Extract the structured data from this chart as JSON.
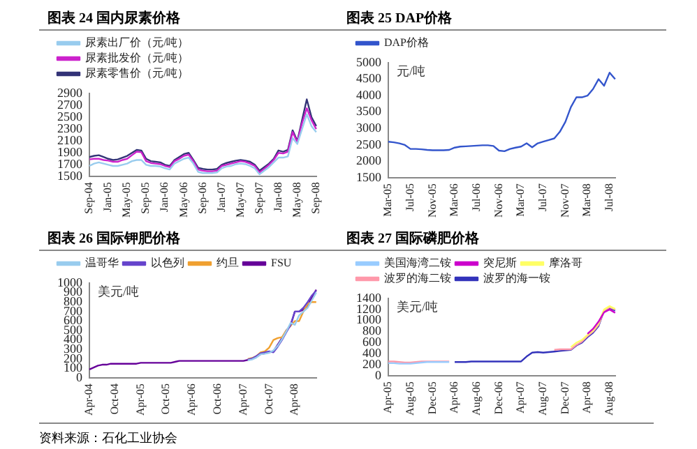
{
  "chart_data": [
    {
      "type": "line",
      "title": "图表 24  国内尿素价格",
      "categories": [
        "Sep-04",
        null,
        null,
        null,
        "Jan-05",
        null,
        null,
        null,
        "May-05",
        null,
        null,
        null,
        "Sep-05",
        null,
        null,
        null,
        "Jan-06",
        null,
        null,
        null,
        "May-06",
        null,
        null,
        null,
        "Sep-06",
        null,
        null,
        null,
        "Jan-07",
        null,
        null,
        null,
        "May-07",
        null,
        null,
        null,
        "Sep-07",
        null,
        null,
        null,
        "Jan-08",
        null,
        null,
        null,
        "May-08",
        null,
        null,
        null,
        "Sep-08"
      ],
      "series": [
        {
          "name": "尿素出厂价（元/吨）",
          "color": "#99ccee",
          "values": [
            1680,
            1720,
            1740,
            1720,
            1700,
            1680,
            1680,
            1700,
            1720,
            1760,
            1780,
            1780,
            1700,
            1680,
            1680,
            1670,
            1640,
            1620,
            1720,
            1760,
            1800,
            1820,
            1720,
            1580,
            1560,
            1560,
            1560,
            1570,
            1640,
            1670,
            1680,
            1710,
            1720,
            1710,
            1680,
            1640,
            1540,
            1600,
            1660,
            1740,
            1820,
            1820,
            1840,
            2150,
            2050,
            2300,
            2550,
            2350,
            2250
          ]
        },
        {
          "name": "尿素批发价（元/吨）",
          "color": "#cc22cc",
          "values": [
            1790,
            1800,
            1800,
            1780,
            1770,
            1750,
            1750,
            1780,
            1800,
            1860,
            1920,
            1910,
            1760,
            1730,
            1720,
            1710,
            1680,
            1660,
            1760,
            1800,
            1850,
            1870,
            1760,
            1620,
            1600,
            1590,
            1590,
            1600,
            1680,
            1700,
            1720,
            1740,
            1760,
            1750,
            1720,
            1680,
            1570,
            1630,
            1700,
            1780,
            1900,
            1890,
            1920,
            2250,
            2080,
            2400,
            2650,
            2450,
            2300
          ]
        },
        {
          "name": "尿素零售价（元/吨）",
          "color": "#333377",
          "values": [
            1830,
            1850,
            1860,
            1830,
            1800,
            1780,
            1790,
            1820,
            1850,
            1900,
            1950,
            1940,
            1800,
            1760,
            1750,
            1740,
            1700,
            1680,
            1780,
            1830,
            1880,
            1900,
            1780,
            1650,
            1630,
            1620,
            1620,
            1630,
            1700,
            1730,
            1750,
            1770,
            1780,
            1770,
            1750,
            1700,
            1600,
            1660,
            1720,
            1800,
            1940,
            1920,
            1950,
            2280,
            2100,
            2450,
            2800,
            2500,
            2350
          ]
        }
      ],
      "ylim": [
        1500,
        2900
      ],
      "yticks": [
        1500,
        1700,
        1900,
        2100,
        2300,
        2500,
        2700,
        2900
      ],
      "legend": "top left",
      "marker": "none",
      "grid": false
    },
    {
      "type": "line",
      "title": "图表 25  DAP价格",
      "ylabel": "元/吨",
      "categories": [
        "Mar-05",
        null,
        null,
        null,
        "Jul-05",
        null,
        null,
        null,
        "Nov-05",
        null,
        null,
        null,
        "Mar-06",
        null,
        null,
        null,
        "Jul-06",
        null,
        null,
        null,
        "Nov-06",
        null,
        null,
        null,
        "Mar-07",
        null,
        null,
        null,
        "Jul-07",
        null,
        null,
        null,
        "Nov-07",
        null,
        null,
        null,
        "Mar-08",
        null,
        null,
        null,
        "Jul-08",
        null
      ],
      "series": [
        {
          "name": "DAP价格",
          "color": "#3355cc",
          "values": [
            2600,
            2580,
            2550,
            2500,
            2380,
            2380,
            2370,
            2350,
            2340,
            2340,
            2340,
            2350,
            2420,
            2450,
            2460,
            2470,
            2480,
            2490,
            2490,
            2470,
            2330,
            2310,
            2380,
            2420,
            2450,
            2550,
            2430,
            2550,
            2600,
            2650,
            2700,
            2900,
            3200,
            3650,
            3950,
            3950,
            4000,
            4200,
            4500,
            4300,
            4700,
            4500
          ]
        }
      ],
      "ylim": [
        1500,
        5000
      ],
      "yticks": [
        1500,
        2000,
        2500,
        3000,
        3500,
        4000,
        4500,
        5000
      ],
      "legend": "top left",
      "marker": "none",
      "grid": false
    },
    {
      "type": "line",
      "title": "图表 26  国际钾肥价格",
      "ylabel": "美元/吨",
      "categories": [
        "Apr-04",
        null,
        null,
        null,
        null,
        null,
        "Oct-04",
        null,
        null,
        null,
        null,
        null,
        "Apr-05",
        null,
        null,
        null,
        null,
        null,
        "Oct-05",
        null,
        null,
        null,
        null,
        null,
        "Apr-06",
        null,
        null,
        null,
        null,
        null,
        "Oct-06",
        null,
        null,
        null,
        null,
        null,
        "Apr-07",
        null,
        null,
        null,
        null,
        null,
        "Oct-07",
        null,
        null,
        null,
        null,
        null,
        "Apr-08",
        null,
        null,
        null,
        null,
        null
      ],
      "series": [
        {
          "name": "温哥华",
          "color": "#99ccee",
          "values": [
            null,
            null,
            null,
            null,
            null,
            null,
            null,
            null,
            null,
            null,
            null,
            null,
            null,
            null,
            null,
            null,
            null,
            null,
            null,
            null,
            null,
            null,
            null,
            null,
            null,
            null,
            null,
            null,
            null,
            null,
            null,
            null,
            null,
            null,
            null,
            null,
            null,
            185,
            195,
            215,
            250,
            255,
            265,
            290,
            340,
            410,
            490,
            580,
            560,
            660,
            700,
            740,
            820,
            900
          ]
        },
        {
          "name": "以色列",
          "color": "#6644cc",
          "values": [
            null,
            null,
            null,
            null,
            null,
            null,
            null,
            null,
            null,
            null,
            null,
            null,
            null,
            null,
            null,
            null,
            null,
            null,
            null,
            null,
            null,
            null,
            null,
            null,
            null,
            null,
            null,
            null,
            null,
            null,
            null,
            null,
            null,
            null,
            null,
            null,
            null,
            195,
            205,
            230,
            260,
            270,
            280,
            270,
            330,
            400,
            480,
            560,
            700,
            700,
            740,
            800,
            870,
            920
          ]
        },
        {
          "name": "约旦",
          "color": "#f0a030",
          "values": [
            null,
            null,
            null,
            null,
            null,
            null,
            null,
            null,
            null,
            null,
            null,
            null,
            null,
            null,
            null,
            null,
            null,
            null,
            null,
            null,
            null,
            null,
            null,
            null,
            null,
            null,
            null,
            null,
            null,
            null,
            null,
            null,
            null,
            null,
            null,
            null,
            null,
            200,
            210,
            230,
            270,
            280,
            320,
            400,
            420,
            430,
            500,
            550,
            600,
            600,
            700,
            780,
            800,
            800
          ]
        },
        {
          "name": "FSU",
          "color": "#660099",
          "values": [
            90,
            110,
            130,
            140,
            140,
            150,
            150,
            150,
            150,
            150,
            150,
            150,
            160,
            160,
            160,
            160,
            160,
            160,
            160,
            160,
            170,
            180,
            180,
            180,
            180,
            180,
            180,
            180,
            180,
            180,
            180,
            180,
            180,
            180,
            180,
            180,
            180,
            190,
            200,
            220,
            250,
            260,
            270,
            280,
            350,
            420,
            500,
            550,
            700,
            700,
            720,
            760,
            850,
            930
          ]
        }
      ],
      "ylim": [
        0,
        1000
      ],
      "yticks": [
        0,
        100,
        200,
        300,
        400,
        500,
        600,
        700,
        800,
        900,
        1000
      ],
      "legend": "top left",
      "marker": "none",
      "grid": false,
      "annotations": [
        "资料来源：石化工业协会"
      ]
    },
    {
      "type": "line",
      "title": "图表 27  国际磷肥价格",
      "ylabel": "美元/吨",
      "categories": [
        "Apr-05",
        null,
        null,
        null,
        "Aug-05",
        null,
        null,
        null,
        "Dec-05",
        null,
        null,
        null,
        "Apr-06",
        null,
        null,
        null,
        "Aug-06",
        null,
        null,
        null,
        "Dec-06",
        null,
        null,
        null,
        "Apr-07",
        null,
        null,
        null,
        "Aug-07",
        null,
        null,
        null,
        "Dec-07",
        null,
        null,
        null,
        "Apr-08",
        null,
        null,
        null,
        "Aug-08",
        null
      ],
      "series": [
        {
          "name": "美国海湾二铵",
          "color": "#99ccff",
          "values": [
            230,
            230,
            220,
            220,
            220,
            230,
            240,
            250,
            250,
            250,
            250,
            250,
            null,
            null,
            null,
            null,
            null,
            null,
            null,
            null,
            null,
            null,
            null,
            null,
            null,
            null,
            null,
            null,
            null,
            null,
            null,
            null,
            null,
            null,
            null,
            null,
            null,
            null,
            null,
            null,
            null,
            null
          ]
        },
        {
          "name": "突尼斯",
          "color": "#cc00cc",
          "values": [
            null,
            null,
            null,
            null,
            null,
            null,
            null,
            null,
            null,
            null,
            null,
            null,
            null,
            null,
            null,
            null,
            null,
            null,
            null,
            null,
            null,
            null,
            null,
            null,
            null,
            null,
            null,
            null,
            null,
            null,
            null,
            null,
            null,
            null,
            null,
            null,
            760,
            850,
            980,
            1150,
            1200,
            1140
          ]
        },
        {
          "name": "摩洛哥",
          "color": "#ffff66",
          "values": [
            null,
            null,
            null,
            null,
            null,
            null,
            null,
            null,
            null,
            null,
            null,
            null,
            null,
            null,
            null,
            null,
            null,
            null,
            null,
            null,
            null,
            null,
            null,
            null,
            null,
            null,
            null,
            null,
            null,
            null,
            null,
            null,
            null,
            520,
            600,
            650,
            740,
            820,
            950,
            1200,
            1260,
            1210
          ]
        },
        {
          "name": "波罗的海二铵",
          "color": "#ff99aa",
          "values": [
            260,
            260,
            250,
            240,
            240,
            250,
            260,
            260,
            260,
            260,
            260,
            260,
            null,
            null,
            null,
            null,
            null,
            null,
            null,
            null,
            null,
            null,
            null,
            null,
            null,
            null,
            null,
            null,
            null,
            null,
            470,
            480,
            480,
            480,
            560,
            620,
            720,
            800,
            920,
            1180,
            1240,
            1200
          ]
        },
        {
          "name": "波罗的海一铵",
          "color": "#3333bb",
          "values": [
            null,
            null,
            null,
            null,
            null,
            null,
            null,
            null,
            null,
            null,
            null,
            null,
            250,
            250,
            250,
            260,
            260,
            260,
            260,
            260,
            260,
            260,
            260,
            260,
            260,
            350,
            420,
            430,
            420,
            430,
            440,
            450,
            460,
            470,
            550,
            600,
            700,
            780,
            900,
            1180,
            1230,
            1180
          ]
        }
      ],
      "ylim": [
        0,
        1400
      ],
      "yticks": [
        0,
        200,
        400,
        600,
        800,
        1000,
        1200,
        1400
      ],
      "legend": "top left",
      "marker": "none",
      "grid": false
    }
  ]
}
